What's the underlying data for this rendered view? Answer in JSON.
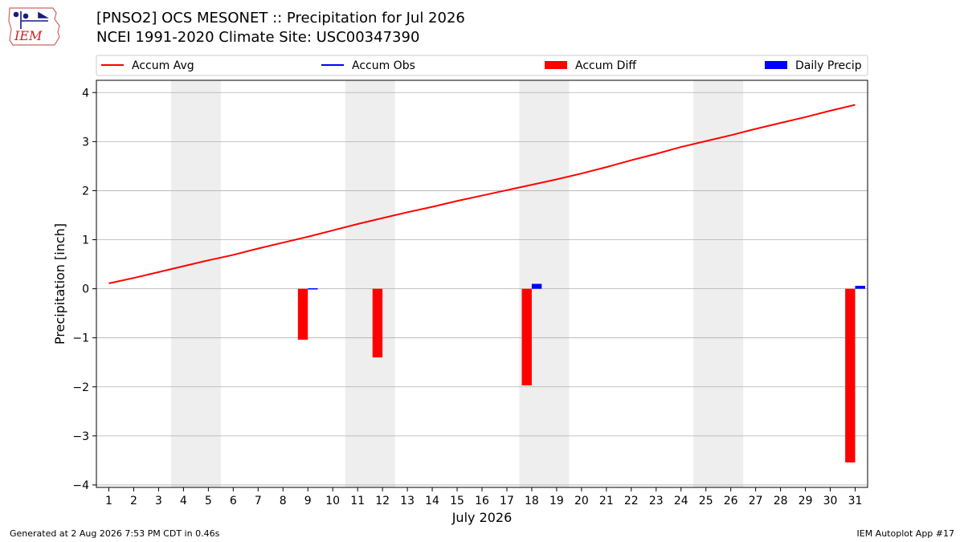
{
  "header": {
    "title_line1": "[PNSO2] OCS MESONET :: Precipitation for Jul 2026",
    "title_line2": "NCEI 1991-2020 Climate Site: USC00347390",
    "logo_text": "IEM"
  },
  "footer": {
    "left": "Generated at 2 Aug 2026 7:53 PM CDT in 0.46s",
    "right": "IEM Autoplot App #17"
  },
  "colors": {
    "accum_avg": "#ff0000",
    "accum_obs": "#0000ff",
    "accum_diff": "#ff0000",
    "daily_precip": "#0000ff",
    "weekend_shade": "#eeeeee",
    "grid": "#b0b0b0"
  },
  "chart_data": {
    "type": "bar",
    "xlabel": "July 2026",
    "ylabel": "Precipitation [inch]",
    "xlim": [
      0.5,
      31.5
    ],
    "ylim": [
      -4.05,
      4.25
    ],
    "yticks": [
      -4,
      -3,
      -2,
      -1,
      0,
      1,
      2,
      3,
      4
    ],
    "ytick_labels": [
      "−4",
      "−3",
      "−2",
      "−1",
      "0",
      "1",
      "2",
      "3",
      "4"
    ],
    "x": [
      1,
      2,
      3,
      4,
      5,
      6,
      7,
      8,
      9,
      10,
      11,
      12,
      13,
      14,
      15,
      16,
      17,
      18,
      19,
      20,
      21,
      22,
      23,
      24,
      25,
      26,
      27,
      28,
      29,
      30,
      31
    ],
    "xtick_labels": [
      "1",
      "2",
      "3",
      "4",
      "5",
      "6",
      "7",
      "8",
      "9",
      "10",
      "11",
      "12",
      "13",
      "14",
      "15",
      "16",
      "17",
      "18",
      "19",
      "20",
      "21",
      "22",
      "23",
      "24",
      "25",
      "26",
      "27",
      "28",
      "29",
      "30",
      "31"
    ],
    "grid": "horizontal",
    "legend_placement": "top",
    "legend": [
      "Accum Avg",
      "Accum Obs",
      "Accum Diff",
      "Daily Precip"
    ],
    "shaded_day_ranges": [
      [
        3.5,
        5.5
      ],
      [
        10.5,
        12.5
      ],
      [
        17.5,
        19.5
      ],
      [
        24.5,
        26.5
      ]
    ],
    "series": [
      {
        "name": "Accum Avg",
        "type": "line",
        "values": [
          0.11,
          0.22,
          0.34,
          0.46,
          0.58,
          0.69,
          0.82,
          0.94,
          1.06,
          1.19,
          1.32,
          1.44,
          1.56,
          1.67,
          1.79,
          1.9,
          2.01,
          2.12,
          2.23,
          2.35,
          2.48,
          2.62,
          2.75,
          2.89,
          3.01,
          3.13,
          3.26,
          3.38,
          3.5,
          3.63,
          3.75
        ]
      },
      {
        "name": "Accum Diff",
        "type": "bar",
        "points": [
          [
            9,
            -1.04
          ],
          [
            12,
            -1.4
          ],
          [
            18,
            -1.97
          ],
          [
            31,
            -3.54
          ]
        ]
      },
      {
        "name": "Daily Precip",
        "type": "bar",
        "points": [
          [
            9,
            0.01
          ],
          [
            18,
            0.1
          ],
          [
            31,
            0.06
          ]
        ]
      }
    ]
  }
}
